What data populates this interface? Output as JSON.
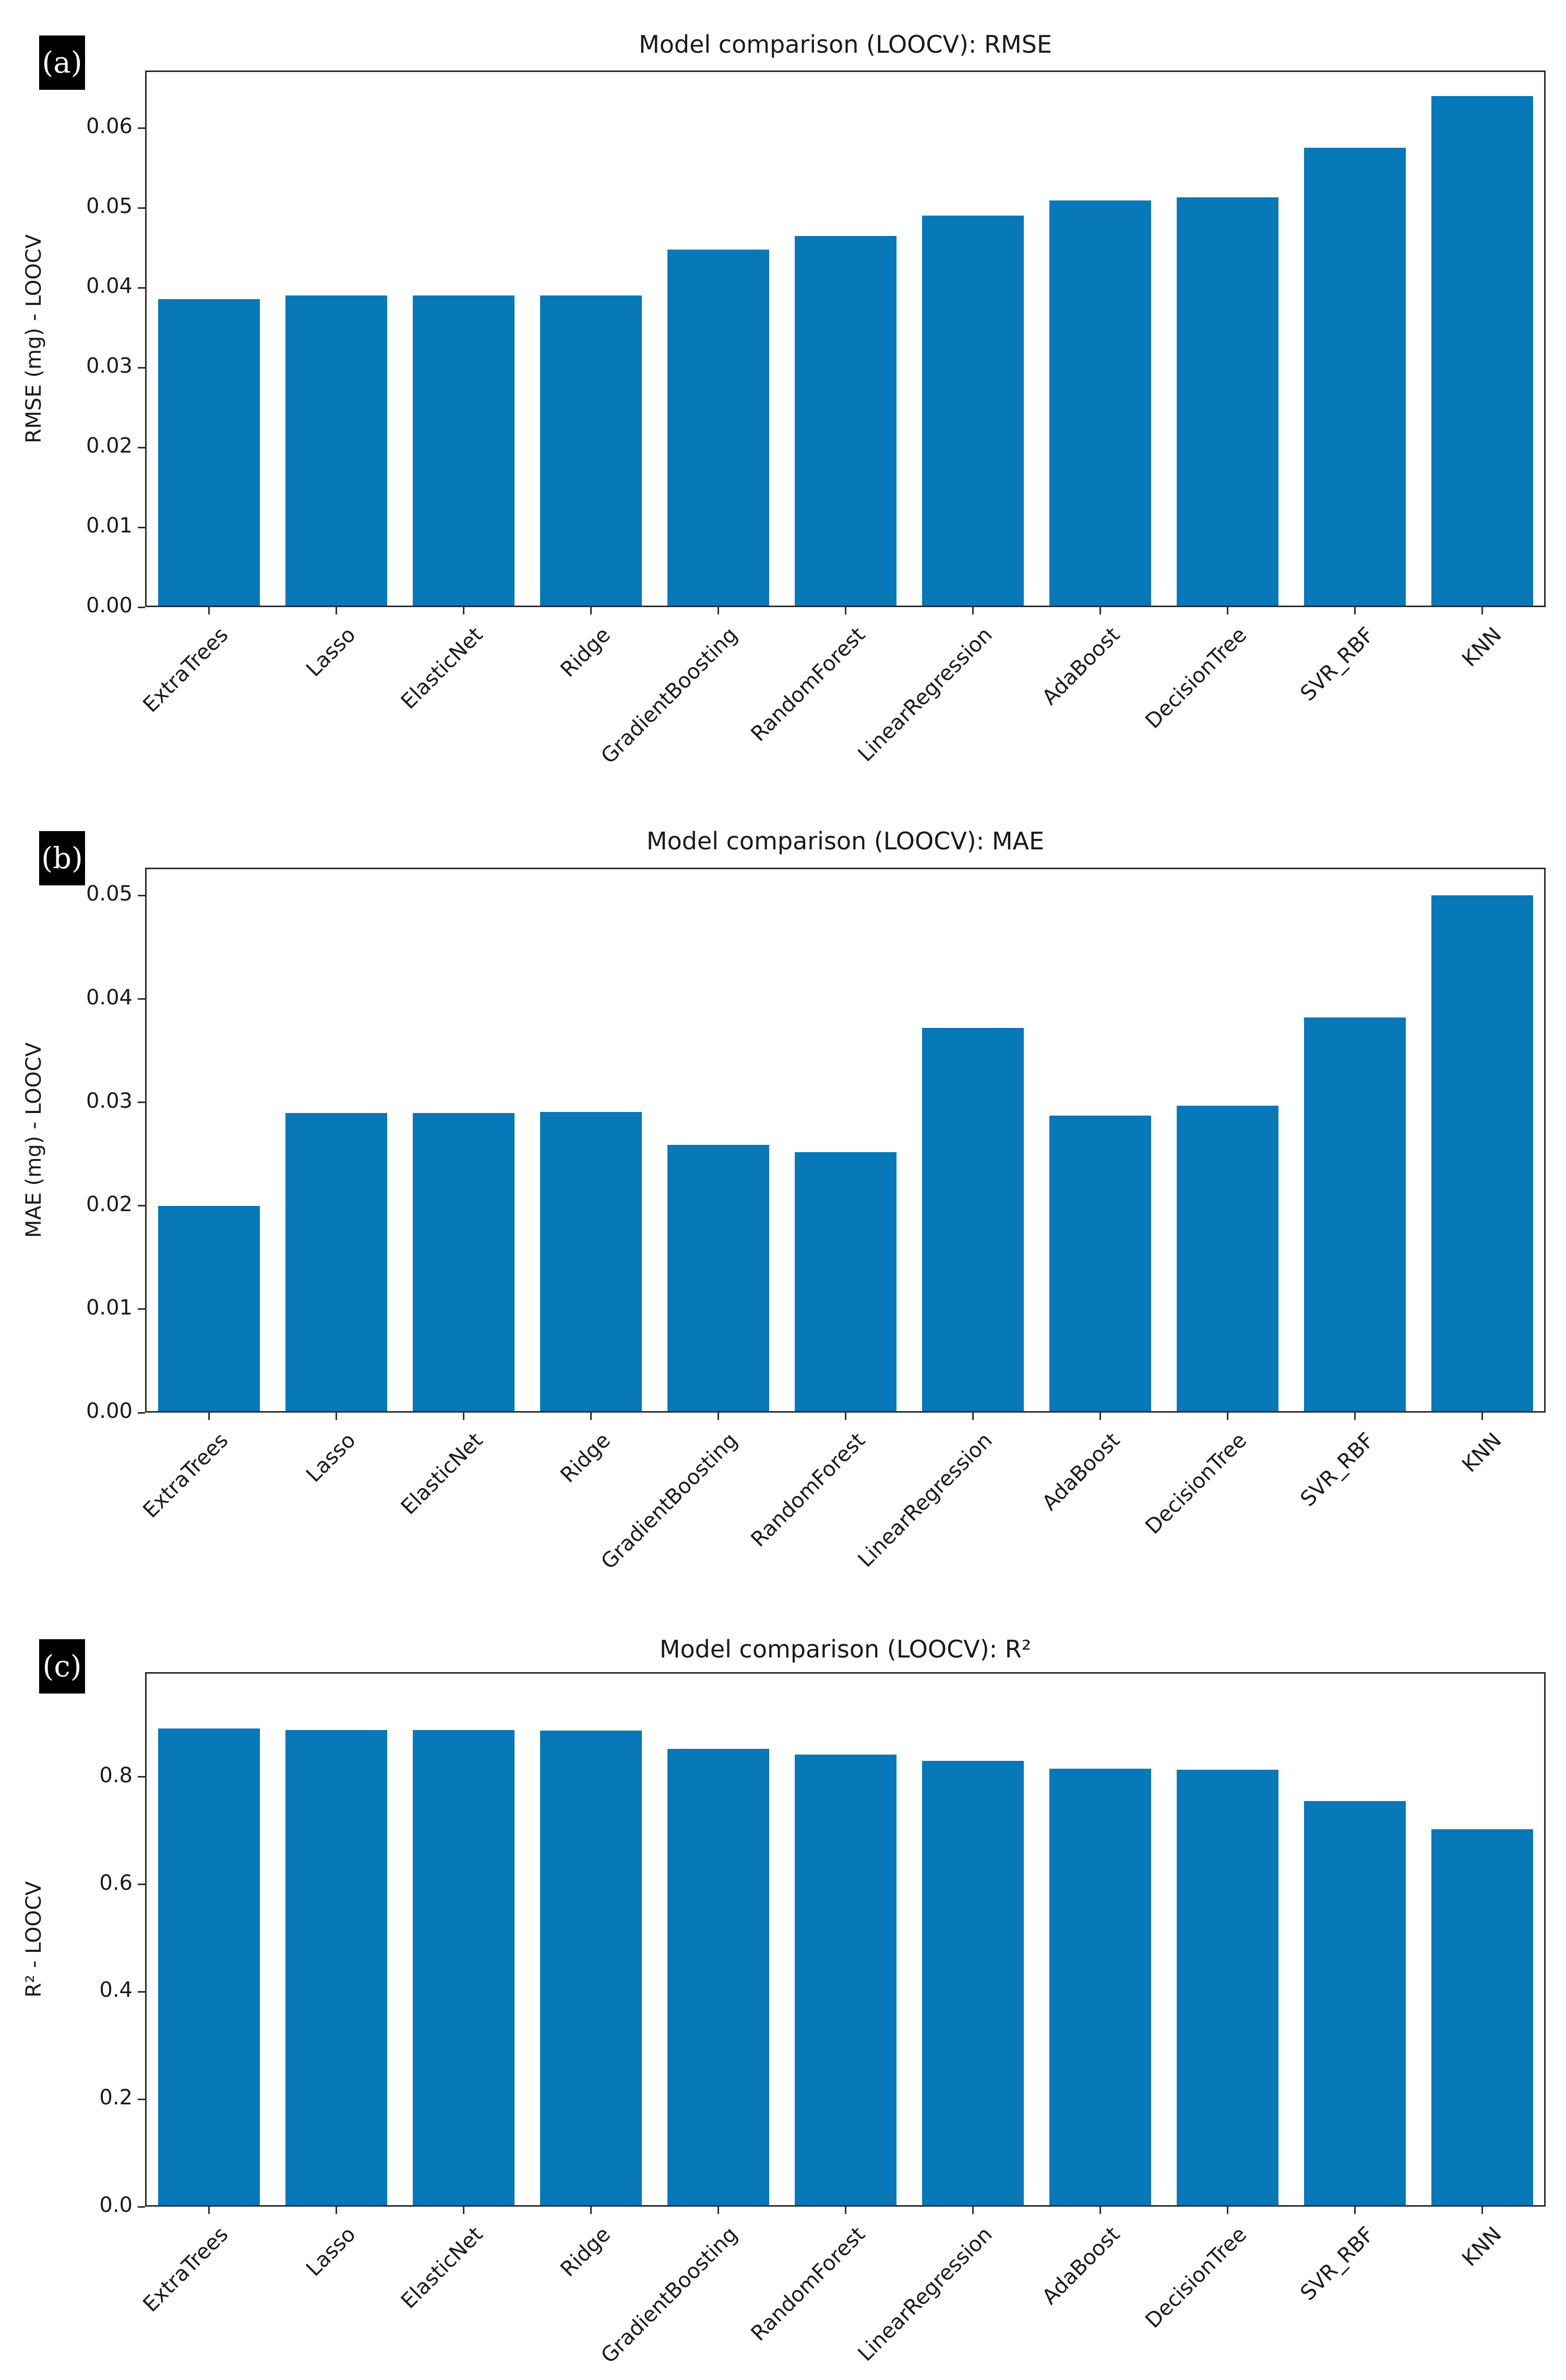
{
  "figure_tags": {
    "a": "(a)",
    "b": "(b)",
    "c": "(c)"
  },
  "bar_color": "#0778b8",
  "spine_color": "#2e2e2e",
  "background_color": "#ffffff",
  "chart_data": [
    {
      "type": "bar",
      "panel_tag": "(a)",
      "title": "Model comparison (LOOCV): RMSE",
      "xlabel": "",
      "ylabel": "RMSE (mg) - LOOCV",
      "categories": [
        "ExtraTrees",
        "Lasso",
        "ElasticNet",
        "Ridge",
        "GradientBoosting",
        "RandomForest",
        "LinearRegression",
        "AdaBoost",
        "DecisionTree",
        "SVR_RBF",
        "KNN"
      ],
      "values": [
        0.0386,
        0.039,
        0.039,
        0.039,
        0.0448,
        0.0465,
        0.049,
        0.0509,
        0.0513,
        0.0575,
        0.064
      ],
      "ylim": [
        0,
        0.0672
      ],
      "yticks": [
        0,
        0.01,
        0.02,
        0.03,
        0.04,
        0.05,
        0.06
      ],
      "ytick_labels": [
        "0.00",
        "0.01",
        "0.02",
        "0.03",
        "0.04",
        "0.05",
        "0.06"
      ],
      "grid": false,
      "legend": false,
      "xtick_rotation_deg": 45
    },
    {
      "type": "bar",
      "panel_tag": "(b)",
      "title": "Model comparison (LOOCV): MAE",
      "xlabel": "",
      "ylabel": "MAE (mg) - LOOCV",
      "categories": [
        "ExtraTrees",
        "Lasso",
        "ElasticNet",
        "Ridge",
        "GradientBoosting",
        "RandomForest",
        "LinearRegression",
        "AdaBoost",
        "DecisionTree",
        "SVR_RBF",
        "KNN"
      ],
      "values": [
        0.02,
        0.029,
        0.029,
        0.0291,
        0.0259,
        0.0252,
        0.0372,
        0.0287,
        0.0297,
        0.0382,
        0.05
      ],
      "ylim": [
        0,
        0.0527
      ],
      "yticks": [
        0,
        0.01,
        0.02,
        0.03,
        0.04,
        0.05
      ],
      "ytick_labels": [
        "0.00",
        "0.01",
        "0.02",
        "0.03",
        "0.04",
        "0.05"
      ],
      "grid": false,
      "legend": false,
      "xtick_rotation_deg": 45
    },
    {
      "type": "bar",
      "panel_tag": "(c)",
      "title": "Model comparison (LOOCV): R²",
      "xlabel": "",
      "ylabel": "R² - LOOCV",
      "categories": [
        "ExtraTrees",
        "Lasso",
        "ElasticNet",
        "Ridge",
        "GradientBoosting",
        "RandomForest",
        "LinearRegression",
        "AdaBoost",
        "DecisionTree",
        "SVR_RBF",
        "KNN"
      ],
      "values": [
        0.89,
        0.887,
        0.887,
        0.886,
        0.852,
        0.841,
        0.83,
        0.815,
        0.813,
        0.755,
        0.703
      ],
      "ylim": [
        0,
        0.995
      ],
      "yticks": [
        0,
        0.2,
        0.4,
        0.6,
        0.8
      ],
      "ytick_labels": [
        "0.0",
        "0.2",
        "0.4",
        "0.6",
        "0.8"
      ],
      "grid": false,
      "legend": false,
      "xtick_rotation_deg": 45
    }
  ]
}
